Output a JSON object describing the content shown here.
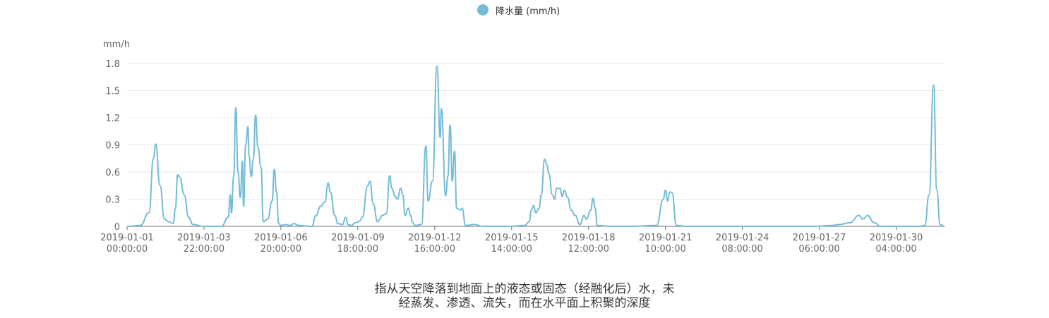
{
  "legend": {
    "label": "降水量 (mm/h)"
  },
  "caption": {
    "line1": "指从天空降落到地面上的液态或固态（经融化后）水，未",
    "line2": "经蒸发、渗透、流失，而在水平面上积聚的深度"
  },
  "chart_data": {
    "type": "line",
    "ylabel": "mm/h",
    "ylim": [
      0,
      1.8
    ],
    "yticks": [
      0,
      0.3,
      0.6,
      0.9,
      1.2,
      1.5,
      1.8
    ],
    "xlim": [
      "2019-01-01 00:00:00",
      "2019-02-01 00:00:00"
    ],
    "xticks": [
      [
        "2019-01-01",
        "00:00:00"
      ],
      [
        "2019-01-03",
        "22:00:00"
      ],
      [
        "2019-01-06",
        "20:00:00"
      ],
      [
        "2019-01-09",
        "18:00:00"
      ],
      [
        "2019-01-12",
        "16:00:00"
      ],
      [
        "2019-01-15",
        "14:00:00"
      ],
      [
        "2019-01-18",
        "12:00:00"
      ],
      [
        "2019-01-21",
        "10:00:00"
      ],
      [
        "2019-01-24",
        "08:00:00"
      ],
      [
        "2019-01-27",
        "06:00:00"
      ],
      [
        "2019-01-30",
        "04:00:00"
      ]
    ],
    "grid": true,
    "legend_position": "top-center",
    "color": "#74bcd6",
    "series": [
      {
        "name": "降水量 (mm/h)",
        "points": [
          [
            "2019-01-01 00:00",
            0
          ],
          [
            "2019-01-01 12:00",
            0.01
          ],
          [
            "2019-01-01 20:00",
            0.15
          ],
          [
            "2019-01-02 00:00",
            0.75
          ],
          [
            "2019-01-02 02:00",
            0.91
          ],
          [
            "2019-01-02 06:00",
            0.45
          ],
          [
            "2019-01-02 10:00",
            0.08
          ],
          [
            "2019-01-02 14:00",
            0.05
          ],
          [
            "2019-01-02 18:00",
            0.03
          ],
          [
            "2019-01-02 20:00",
            0.2
          ],
          [
            "2019-01-02 22:00",
            0.57
          ],
          [
            "2019-01-03 00:00",
            0.54
          ],
          [
            "2019-01-03 04:00",
            0.35
          ],
          [
            "2019-01-03 08:00",
            0.1
          ],
          [
            "2019-01-03 12:00",
            0.02
          ],
          [
            "2019-01-03 22:00",
            0
          ],
          [
            "2019-01-04 14:00",
            0
          ],
          [
            "2019-01-04 20:00",
            0.1
          ],
          [
            "2019-01-04 22:00",
            0.35
          ],
          [
            "2019-01-04 23:00",
            0.15
          ],
          [
            "2019-01-05 01:00",
            0.55
          ],
          [
            "2019-01-05 03:00",
            1.31
          ],
          [
            "2019-01-05 05:00",
            0.6
          ],
          [
            "2019-01-05 07:00",
            0.32
          ],
          [
            "2019-01-05 09:00",
            0.72
          ],
          [
            "2019-01-05 10:00",
            0.22
          ],
          [
            "2019-01-05 12:00",
            0.9
          ],
          [
            "2019-01-05 14:00",
            1.1
          ],
          [
            "2019-01-05 15:00",
            0.78
          ],
          [
            "2019-01-05 17:00",
            0.55
          ],
          [
            "2019-01-05 19:00",
            0.75
          ],
          [
            "2019-01-05 21:00",
            1.23
          ],
          [
            "2019-01-05 23:00",
            0.88
          ],
          [
            "2019-01-06 02:00",
            0.65
          ],
          [
            "2019-01-06 04:00",
            0.05
          ],
          [
            "2019-01-06 08:00",
            0.08
          ],
          [
            "2019-01-06 12:00",
            0.28
          ],
          [
            "2019-01-06 14:00",
            0.63
          ],
          [
            "2019-01-06 16:00",
            0.38
          ],
          [
            "2019-01-06 18:00",
            0.03
          ],
          [
            "2019-01-06 20:00",
            0.01
          ],
          [
            "2019-01-07 00:00",
            0.02
          ],
          [
            "2019-01-07 04:00",
            0.01
          ],
          [
            "2019-01-07 08:00",
            0.03
          ],
          [
            "2019-01-07 12:00",
            0.01
          ],
          [
            "2019-01-08 00:00",
            0
          ],
          [
            "2019-01-08 04:00",
            0.12
          ],
          [
            "2019-01-08 08:00",
            0.22
          ],
          [
            "2019-01-08 12:00",
            0.27
          ],
          [
            "2019-01-08 15:00",
            0.48
          ],
          [
            "2019-01-08 17:00",
            0.38
          ],
          [
            "2019-01-08 21:00",
            0.12
          ],
          [
            "2019-01-09 00:00",
            0.03
          ],
          [
            "2019-01-09 04:00",
            0.02
          ],
          [
            "2019-01-09 07:00",
            0.1
          ],
          [
            "2019-01-09 09:00",
            0.02
          ],
          [
            "2019-01-09 12:00",
            0.01
          ],
          [
            "2019-01-09 16:00",
            0.04
          ],
          [
            "2019-01-09 20:00",
            0.06
          ],
          [
            "2019-01-09 22:00",
            0.1
          ],
          [
            "2019-01-10 03:00",
            0.45
          ],
          [
            "2019-01-10 05:00",
            0.5
          ],
          [
            "2019-01-10 08:00",
            0.25
          ],
          [
            "2019-01-10 12:00",
            0.05
          ],
          [
            "2019-01-10 14:00",
            0.08
          ],
          [
            "2019-01-10 16:00",
            0.12
          ],
          [
            "2019-01-10 20:00",
            0.14
          ],
          [
            "2019-01-10 23:00",
            0.56
          ],
          [
            "2019-01-11 01:00",
            0.42
          ],
          [
            "2019-01-11 04:00",
            0.33
          ],
          [
            "2019-01-11 06:00",
            0.3
          ],
          [
            "2019-01-11 09:00",
            0.42
          ],
          [
            "2019-01-11 11:00",
            0.35
          ],
          [
            "2019-01-11 13:00",
            0.12
          ],
          [
            "2019-01-11 16:00",
            0.2
          ],
          [
            "2019-01-11 18:00",
            0.12
          ],
          [
            "2019-01-11 20:00",
            0.04
          ],
          [
            "2019-01-11 22:00",
            0.01
          ],
          [
            "2019-01-12 04:00",
            0.02
          ],
          [
            "2019-01-12 08:00",
            0.89
          ],
          [
            "2019-01-12 10:00",
            0.28
          ],
          [
            "2019-01-12 14:00",
            0.5
          ],
          [
            "2019-01-12 18:00",
            1.77
          ],
          [
            "2019-01-12 21:00",
            0.98
          ],
          [
            "2019-01-12 22:00",
            1.3
          ],
          [
            "2019-01-13 02:00",
            0.34
          ],
          [
            "2019-01-13 04:00",
            0.55
          ],
          [
            "2019-01-13 06:00",
            1.12
          ],
          [
            "2019-01-13 08:00",
            0.5
          ],
          [
            "2019-01-13 10:00",
            0.83
          ],
          [
            "2019-01-13 12:00",
            0.2
          ],
          [
            "2019-01-13 15:00",
            0.18
          ],
          [
            "2019-01-13 17:00",
            0.2
          ],
          [
            "2019-01-13 20:00",
            0.01
          ],
          [
            "2019-01-14 04:00",
            0.02
          ],
          [
            "2019-01-14 12:00",
            0
          ],
          [
            "2019-01-15 12:00",
            0
          ],
          [
            "2019-01-16 02:00",
            0.01
          ],
          [
            "2019-01-16 06:00",
            0.05
          ],
          [
            "2019-01-16 08:00",
            0.18
          ],
          [
            "2019-01-16 10:00",
            0.23
          ],
          [
            "2019-01-16 12:00",
            0.15
          ],
          [
            "2019-01-16 15:00",
            0.2
          ],
          [
            "2019-01-16 17:00",
            0.35
          ],
          [
            "2019-01-16 20:00",
            0.74
          ],
          [
            "2019-01-16 22:00",
            0.68
          ],
          [
            "2019-01-17 00:00",
            0.58
          ],
          [
            "2019-01-17 03:00",
            0.35
          ],
          [
            "2019-01-17 05:00",
            0.3
          ],
          [
            "2019-01-17 07:00",
            0.42
          ],
          [
            "2019-01-17 10:00",
            0.42
          ],
          [
            "2019-01-17 12:00",
            0.33
          ],
          [
            "2019-01-17 14:00",
            0.4
          ],
          [
            "2019-01-17 17:00",
            0.32
          ],
          [
            "2019-01-17 20:00",
            0.18
          ],
          [
            "2019-01-18 00:00",
            0.12
          ],
          [
            "2019-01-18 04:00",
            0.02
          ],
          [
            "2019-01-18 08:00",
            0.12
          ],
          [
            "2019-01-18 10:00",
            0.08
          ],
          [
            "2019-01-18 14:00",
            0.18
          ],
          [
            "2019-01-18 16:00",
            0.31
          ],
          [
            "2019-01-18 18:00",
            0.2
          ],
          [
            "2019-01-18 20:00",
            0.01
          ],
          [
            "2019-01-19 08:00",
            0
          ],
          [
            "2019-01-20 00:00",
            0
          ],
          [
            "2019-01-21 02:00",
            0.01
          ],
          [
            "2019-01-21 08:00",
            0.3
          ],
          [
            "2019-01-21 10:00",
            0.4
          ],
          [
            "2019-01-21 12:00",
            0.28
          ],
          [
            "2019-01-21 14:00",
            0.38
          ],
          [
            "2019-01-21 16:00",
            0.37
          ],
          [
            "2019-01-21 20:00",
            0.01
          ],
          [
            "2019-01-22 06:00",
            0
          ],
          [
            "2019-01-27 00:00",
            0
          ],
          [
            "2019-01-27 18:00",
            0.01
          ],
          [
            "2019-01-28 00:00",
            0.02
          ],
          [
            "2019-01-28 10:00",
            0.04
          ],
          [
            "2019-01-28 18:00",
            0.12
          ],
          [
            "2019-01-28 22:00",
            0.08
          ],
          [
            "2019-01-29 02:00",
            0.12
          ],
          [
            "2019-01-29 08:00",
            0.04
          ],
          [
            "2019-01-29 14:00",
            0
          ],
          [
            "2019-01-31 00:00",
            0
          ],
          [
            "2019-01-31 06:00",
            0.01
          ],
          [
            "2019-01-31 10:00",
            0.35
          ],
          [
            "2019-01-31 14:00",
            1.56
          ],
          [
            "2019-01-31 17:00",
            0.4
          ],
          [
            "2019-01-31 20:00",
            0.02
          ],
          [
            "2019-02-01 00:00",
            0
          ]
        ]
      }
    ]
  }
}
